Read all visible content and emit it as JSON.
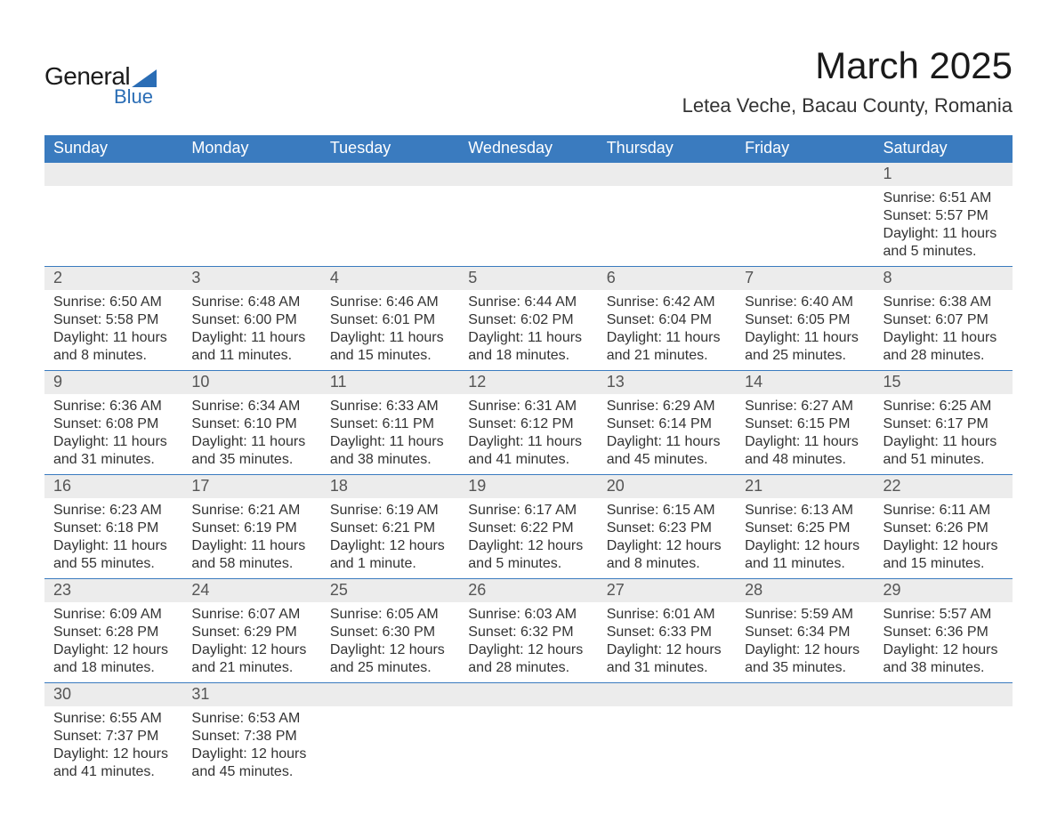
{
  "logo": {
    "general": "General",
    "blue": "Blue"
  },
  "title": "March 2025",
  "location": "Letea Veche, Bacau County, Romania",
  "colors": {
    "header_bg": "#3a7bbf",
    "header_text": "#ffffff",
    "daynum_bg": "#ececec",
    "daynum_text": "#555555",
    "body_text": "#333333",
    "row_border": "#3a7bbf",
    "logo_blue": "#2a6db5",
    "background": "#ffffff"
  },
  "day_headers": [
    "Sunday",
    "Monday",
    "Tuesday",
    "Wednesday",
    "Thursday",
    "Friday",
    "Saturday"
  ],
  "weeks": [
    [
      {
        "n": "",
        "sr": "",
        "ss": "",
        "dl1": "",
        "dl2": ""
      },
      {
        "n": "",
        "sr": "",
        "ss": "",
        "dl1": "",
        "dl2": ""
      },
      {
        "n": "",
        "sr": "",
        "ss": "",
        "dl1": "",
        "dl2": ""
      },
      {
        "n": "",
        "sr": "",
        "ss": "",
        "dl1": "",
        "dl2": ""
      },
      {
        "n": "",
        "sr": "",
        "ss": "",
        "dl1": "",
        "dl2": ""
      },
      {
        "n": "",
        "sr": "",
        "ss": "",
        "dl1": "",
        "dl2": ""
      },
      {
        "n": "1",
        "sr": "Sunrise: 6:51 AM",
        "ss": "Sunset: 5:57 PM",
        "dl1": "Daylight: 11 hours",
        "dl2": "and 5 minutes."
      }
    ],
    [
      {
        "n": "2",
        "sr": "Sunrise: 6:50 AM",
        "ss": "Sunset: 5:58 PM",
        "dl1": "Daylight: 11 hours",
        "dl2": "and 8 minutes."
      },
      {
        "n": "3",
        "sr": "Sunrise: 6:48 AM",
        "ss": "Sunset: 6:00 PM",
        "dl1": "Daylight: 11 hours",
        "dl2": "and 11 minutes."
      },
      {
        "n": "4",
        "sr": "Sunrise: 6:46 AM",
        "ss": "Sunset: 6:01 PM",
        "dl1": "Daylight: 11 hours",
        "dl2": "and 15 minutes."
      },
      {
        "n": "5",
        "sr": "Sunrise: 6:44 AM",
        "ss": "Sunset: 6:02 PM",
        "dl1": "Daylight: 11 hours",
        "dl2": "and 18 minutes."
      },
      {
        "n": "6",
        "sr": "Sunrise: 6:42 AM",
        "ss": "Sunset: 6:04 PM",
        "dl1": "Daylight: 11 hours",
        "dl2": "and 21 minutes."
      },
      {
        "n": "7",
        "sr": "Sunrise: 6:40 AM",
        "ss": "Sunset: 6:05 PM",
        "dl1": "Daylight: 11 hours",
        "dl2": "and 25 minutes."
      },
      {
        "n": "8",
        "sr": "Sunrise: 6:38 AM",
        "ss": "Sunset: 6:07 PM",
        "dl1": "Daylight: 11 hours",
        "dl2": "and 28 minutes."
      }
    ],
    [
      {
        "n": "9",
        "sr": "Sunrise: 6:36 AM",
        "ss": "Sunset: 6:08 PM",
        "dl1": "Daylight: 11 hours",
        "dl2": "and 31 minutes."
      },
      {
        "n": "10",
        "sr": "Sunrise: 6:34 AM",
        "ss": "Sunset: 6:10 PM",
        "dl1": "Daylight: 11 hours",
        "dl2": "and 35 minutes."
      },
      {
        "n": "11",
        "sr": "Sunrise: 6:33 AM",
        "ss": "Sunset: 6:11 PM",
        "dl1": "Daylight: 11 hours",
        "dl2": "and 38 minutes."
      },
      {
        "n": "12",
        "sr": "Sunrise: 6:31 AM",
        "ss": "Sunset: 6:12 PM",
        "dl1": "Daylight: 11 hours",
        "dl2": "and 41 minutes."
      },
      {
        "n": "13",
        "sr": "Sunrise: 6:29 AM",
        "ss": "Sunset: 6:14 PM",
        "dl1": "Daylight: 11 hours",
        "dl2": "and 45 minutes."
      },
      {
        "n": "14",
        "sr": "Sunrise: 6:27 AM",
        "ss": "Sunset: 6:15 PM",
        "dl1": "Daylight: 11 hours",
        "dl2": "and 48 minutes."
      },
      {
        "n": "15",
        "sr": "Sunrise: 6:25 AM",
        "ss": "Sunset: 6:17 PM",
        "dl1": "Daylight: 11 hours",
        "dl2": "and 51 minutes."
      }
    ],
    [
      {
        "n": "16",
        "sr": "Sunrise: 6:23 AM",
        "ss": "Sunset: 6:18 PM",
        "dl1": "Daylight: 11 hours",
        "dl2": "and 55 minutes."
      },
      {
        "n": "17",
        "sr": "Sunrise: 6:21 AM",
        "ss": "Sunset: 6:19 PM",
        "dl1": "Daylight: 11 hours",
        "dl2": "and 58 minutes."
      },
      {
        "n": "18",
        "sr": "Sunrise: 6:19 AM",
        "ss": "Sunset: 6:21 PM",
        "dl1": "Daylight: 12 hours",
        "dl2": "and 1 minute."
      },
      {
        "n": "19",
        "sr": "Sunrise: 6:17 AM",
        "ss": "Sunset: 6:22 PM",
        "dl1": "Daylight: 12 hours",
        "dl2": "and 5 minutes."
      },
      {
        "n": "20",
        "sr": "Sunrise: 6:15 AM",
        "ss": "Sunset: 6:23 PM",
        "dl1": "Daylight: 12 hours",
        "dl2": "and 8 minutes."
      },
      {
        "n": "21",
        "sr": "Sunrise: 6:13 AM",
        "ss": "Sunset: 6:25 PM",
        "dl1": "Daylight: 12 hours",
        "dl2": "and 11 minutes."
      },
      {
        "n": "22",
        "sr": "Sunrise: 6:11 AM",
        "ss": "Sunset: 6:26 PM",
        "dl1": "Daylight: 12 hours",
        "dl2": "and 15 minutes."
      }
    ],
    [
      {
        "n": "23",
        "sr": "Sunrise: 6:09 AM",
        "ss": "Sunset: 6:28 PM",
        "dl1": "Daylight: 12 hours",
        "dl2": "and 18 minutes."
      },
      {
        "n": "24",
        "sr": "Sunrise: 6:07 AM",
        "ss": "Sunset: 6:29 PM",
        "dl1": "Daylight: 12 hours",
        "dl2": "and 21 minutes."
      },
      {
        "n": "25",
        "sr": "Sunrise: 6:05 AM",
        "ss": "Sunset: 6:30 PM",
        "dl1": "Daylight: 12 hours",
        "dl2": "and 25 minutes."
      },
      {
        "n": "26",
        "sr": "Sunrise: 6:03 AM",
        "ss": "Sunset: 6:32 PM",
        "dl1": "Daylight: 12 hours",
        "dl2": "and 28 minutes."
      },
      {
        "n": "27",
        "sr": "Sunrise: 6:01 AM",
        "ss": "Sunset: 6:33 PM",
        "dl1": "Daylight: 12 hours",
        "dl2": "and 31 minutes."
      },
      {
        "n": "28",
        "sr": "Sunrise: 5:59 AM",
        "ss": "Sunset: 6:34 PM",
        "dl1": "Daylight: 12 hours",
        "dl2": "and 35 minutes."
      },
      {
        "n": "29",
        "sr": "Sunrise: 5:57 AM",
        "ss": "Sunset: 6:36 PM",
        "dl1": "Daylight: 12 hours",
        "dl2": "and 38 minutes."
      }
    ],
    [
      {
        "n": "30",
        "sr": "Sunrise: 6:55 AM",
        "ss": "Sunset: 7:37 PM",
        "dl1": "Daylight: 12 hours",
        "dl2": "and 41 minutes."
      },
      {
        "n": "31",
        "sr": "Sunrise: 6:53 AM",
        "ss": "Sunset: 7:38 PM",
        "dl1": "Daylight: 12 hours",
        "dl2": "and 45 minutes."
      },
      {
        "n": "",
        "sr": "",
        "ss": "",
        "dl1": "",
        "dl2": ""
      },
      {
        "n": "",
        "sr": "",
        "ss": "",
        "dl1": "",
        "dl2": ""
      },
      {
        "n": "",
        "sr": "",
        "ss": "",
        "dl1": "",
        "dl2": ""
      },
      {
        "n": "",
        "sr": "",
        "ss": "",
        "dl1": "",
        "dl2": ""
      },
      {
        "n": "",
        "sr": "",
        "ss": "",
        "dl1": "",
        "dl2": ""
      }
    ]
  ]
}
